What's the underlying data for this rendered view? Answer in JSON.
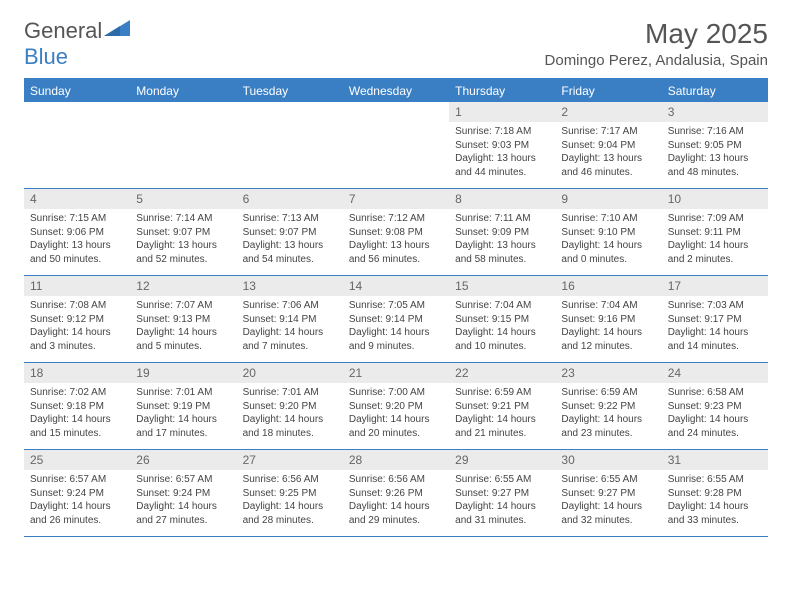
{
  "logo": {
    "word1": "General",
    "word2": "Blue"
  },
  "title": "May 2025",
  "location": "Domingo Perez, Andalusia, Spain",
  "colors": {
    "accent": "#3a7fc4",
    "header_bg": "#3a7fc4",
    "header_text": "#ffffff",
    "daynum_bg": "#ebebeb",
    "daynum_text": "#666666",
    "body_text": "#444444",
    "page_bg": "#ffffff"
  },
  "typography": {
    "title_fontsize": 28,
    "location_fontsize": 15,
    "dayheader_fontsize": 12,
    "daynum_fontsize": 12,
    "cell_fontsize": 10
  },
  "layout": {
    "columns": 7,
    "rows": 5,
    "leading_blanks": 4
  },
  "day_names": [
    "Sunday",
    "Monday",
    "Tuesday",
    "Wednesday",
    "Thursday",
    "Friday",
    "Saturday"
  ],
  "days": [
    {
      "n": "1",
      "sunrise": "Sunrise: 7:18 AM",
      "sunset": "Sunset: 9:03 PM",
      "daylight": "Daylight: 13 hours and 44 minutes."
    },
    {
      "n": "2",
      "sunrise": "Sunrise: 7:17 AM",
      "sunset": "Sunset: 9:04 PM",
      "daylight": "Daylight: 13 hours and 46 minutes."
    },
    {
      "n": "3",
      "sunrise": "Sunrise: 7:16 AM",
      "sunset": "Sunset: 9:05 PM",
      "daylight": "Daylight: 13 hours and 48 minutes."
    },
    {
      "n": "4",
      "sunrise": "Sunrise: 7:15 AM",
      "sunset": "Sunset: 9:06 PM",
      "daylight": "Daylight: 13 hours and 50 minutes."
    },
    {
      "n": "5",
      "sunrise": "Sunrise: 7:14 AM",
      "sunset": "Sunset: 9:07 PM",
      "daylight": "Daylight: 13 hours and 52 minutes."
    },
    {
      "n": "6",
      "sunrise": "Sunrise: 7:13 AM",
      "sunset": "Sunset: 9:07 PM",
      "daylight": "Daylight: 13 hours and 54 minutes."
    },
    {
      "n": "7",
      "sunrise": "Sunrise: 7:12 AM",
      "sunset": "Sunset: 9:08 PM",
      "daylight": "Daylight: 13 hours and 56 minutes."
    },
    {
      "n": "8",
      "sunrise": "Sunrise: 7:11 AM",
      "sunset": "Sunset: 9:09 PM",
      "daylight": "Daylight: 13 hours and 58 minutes."
    },
    {
      "n": "9",
      "sunrise": "Sunrise: 7:10 AM",
      "sunset": "Sunset: 9:10 PM",
      "daylight": "Daylight: 14 hours and 0 minutes."
    },
    {
      "n": "10",
      "sunrise": "Sunrise: 7:09 AM",
      "sunset": "Sunset: 9:11 PM",
      "daylight": "Daylight: 14 hours and 2 minutes."
    },
    {
      "n": "11",
      "sunrise": "Sunrise: 7:08 AM",
      "sunset": "Sunset: 9:12 PM",
      "daylight": "Daylight: 14 hours and 3 minutes."
    },
    {
      "n": "12",
      "sunrise": "Sunrise: 7:07 AM",
      "sunset": "Sunset: 9:13 PM",
      "daylight": "Daylight: 14 hours and 5 minutes."
    },
    {
      "n": "13",
      "sunrise": "Sunrise: 7:06 AM",
      "sunset": "Sunset: 9:14 PM",
      "daylight": "Daylight: 14 hours and 7 minutes."
    },
    {
      "n": "14",
      "sunrise": "Sunrise: 7:05 AM",
      "sunset": "Sunset: 9:14 PM",
      "daylight": "Daylight: 14 hours and 9 minutes."
    },
    {
      "n": "15",
      "sunrise": "Sunrise: 7:04 AM",
      "sunset": "Sunset: 9:15 PM",
      "daylight": "Daylight: 14 hours and 10 minutes."
    },
    {
      "n": "16",
      "sunrise": "Sunrise: 7:04 AM",
      "sunset": "Sunset: 9:16 PM",
      "daylight": "Daylight: 14 hours and 12 minutes."
    },
    {
      "n": "17",
      "sunrise": "Sunrise: 7:03 AM",
      "sunset": "Sunset: 9:17 PM",
      "daylight": "Daylight: 14 hours and 14 minutes."
    },
    {
      "n": "18",
      "sunrise": "Sunrise: 7:02 AM",
      "sunset": "Sunset: 9:18 PM",
      "daylight": "Daylight: 14 hours and 15 minutes."
    },
    {
      "n": "19",
      "sunrise": "Sunrise: 7:01 AM",
      "sunset": "Sunset: 9:19 PM",
      "daylight": "Daylight: 14 hours and 17 minutes."
    },
    {
      "n": "20",
      "sunrise": "Sunrise: 7:01 AM",
      "sunset": "Sunset: 9:20 PM",
      "daylight": "Daylight: 14 hours and 18 minutes."
    },
    {
      "n": "21",
      "sunrise": "Sunrise: 7:00 AM",
      "sunset": "Sunset: 9:20 PM",
      "daylight": "Daylight: 14 hours and 20 minutes."
    },
    {
      "n": "22",
      "sunrise": "Sunrise: 6:59 AM",
      "sunset": "Sunset: 9:21 PM",
      "daylight": "Daylight: 14 hours and 21 minutes."
    },
    {
      "n": "23",
      "sunrise": "Sunrise: 6:59 AM",
      "sunset": "Sunset: 9:22 PM",
      "daylight": "Daylight: 14 hours and 23 minutes."
    },
    {
      "n": "24",
      "sunrise": "Sunrise: 6:58 AM",
      "sunset": "Sunset: 9:23 PM",
      "daylight": "Daylight: 14 hours and 24 minutes."
    },
    {
      "n": "25",
      "sunrise": "Sunrise: 6:57 AM",
      "sunset": "Sunset: 9:24 PM",
      "daylight": "Daylight: 14 hours and 26 minutes."
    },
    {
      "n": "26",
      "sunrise": "Sunrise: 6:57 AM",
      "sunset": "Sunset: 9:24 PM",
      "daylight": "Daylight: 14 hours and 27 minutes."
    },
    {
      "n": "27",
      "sunrise": "Sunrise: 6:56 AM",
      "sunset": "Sunset: 9:25 PM",
      "daylight": "Daylight: 14 hours and 28 minutes."
    },
    {
      "n": "28",
      "sunrise": "Sunrise: 6:56 AM",
      "sunset": "Sunset: 9:26 PM",
      "daylight": "Daylight: 14 hours and 29 minutes."
    },
    {
      "n": "29",
      "sunrise": "Sunrise: 6:55 AM",
      "sunset": "Sunset: 9:27 PM",
      "daylight": "Daylight: 14 hours and 31 minutes."
    },
    {
      "n": "30",
      "sunrise": "Sunrise: 6:55 AM",
      "sunset": "Sunset: 9:27 PM",
      "daylight": "Daylight: 14 hours and 32 minutes."
    },
    {
      "n": "31",
      "sunrise": "Sunrise: 6:55 AM",
      "sunset": "Sunset: 9:28 PM",
      "daylight": "Daylight: 14 hours and 33 minutes."
    }
  ]
}
